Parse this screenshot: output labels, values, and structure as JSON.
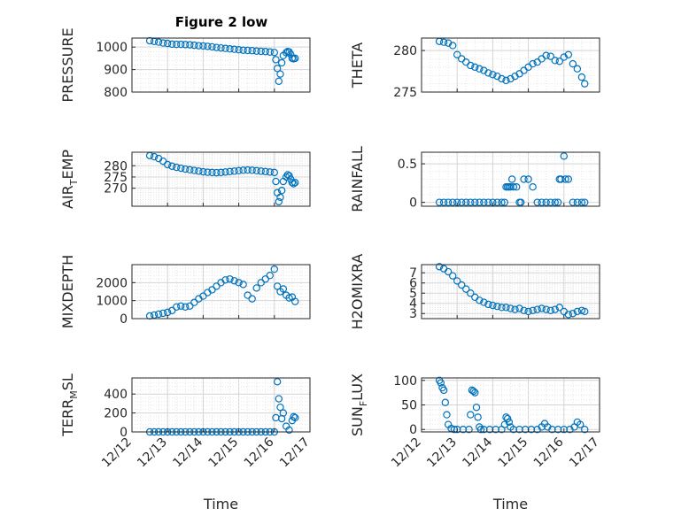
{
  "marker_color": "#0072BD",
  "chart_data": [
    {
      "type": "scatter",
      "title": "Figure 2 low",
      "ylabel": "PRESSURE",
      "xlabel": "",
      "xlim": [
        "12/12",
        "12/17"
      ],
      "ylim": [
        800,
        1040
      ],
      "yticks": [
        800,
        900,
        1000
      ],
      "ytick_labels": [
        "800",
        "900",
        "1000"
      ],
      "xtick_labels": [],
      "grid": true,
      "x": [
        "12/12 12:00",
        "12/12 15:00",
        "12/12 18:00",
        "12/12 21:00",
        "12/13 00:00",
        "12/13 03:00",
        "12/13 06:00",
        "12/13 09:00",
        "12/13 12:00",
        "12/13 15:00",
        "12/13 18:00",
        "12/13 21:00",
        "12/14 00:00",
        "12/14 03:00",
        "12/14 06:00",
        "12/14 09:00",
        "12/14 12:00",
        "12/14 15:00",
        "12/14 18:00",
        "12/14 21:00",
        "12/15 00:00",
        "12/15 03:00",
        "12/15 06:00",
        "12/15 09:00",
        "12/15 12:00",
        "12/15 15:00",
        "12/15 18:00",
        "12/15 21:00",
        "12/16 00:00",
        "12/16 01:00",
        "12/16 02:00",
        "12/16 03:00",
        "12/16 04:00",
        "12/16 05:00",
        "12/16 06:00",
        "12/16 08:00",
        "12/16 09:00",
        "12/16 10:00",
        "12/16 11:00",
        "12/16 12:00",
        "12/16 13:00",
        "12/16 14:00"
      ],
      "y": [
        1028,
        1025,
        1022,
        1018,
        1016,
        1013,
        1012,
        1012,
        1011,
        1010,
        1008,
        1006,
        1005,
        1003,
        1001,
        998,
        996,
        994,
        992,
        990,
        988,
        986,
        985,
        984,
        982,
        981,
        980,
        978,
        976,
        944,
        905,
        848,
        880,
        930,
        962,
        975,
        980,
        978,
        968,
        950,
        948,
        950
      ]
    },
    {
      "type": "scatter",
      "title": "",
      "ylabel": "THETA",
      "xlabel": "",
      "xlim": [
        "12/12",
        "12/17"
      ],
      "ylim": [
        275,
        281.5
      ],
      "yticks": [
        275,
        280
      ],
      "ytick_labels": [
        "275",
        "280"
      ],
      "xtick_labels": [],
      "grid": true,
      "x": [
        "12/12 12:00",
        "12/12 15:00",
        "12/12 18:00",
        "12/12 21:00",
        "12/13 00:00",
        "12/13 03:00",
        "12/13 06:00",
        "12/13 09:00",
        "12/13 12:00",
        "12/13 15:00",
        "12/13 18:00",
        "12/13 21:00",
        "12/14 00:00",
        "12/14 03:00",
        "12/14 06:00",
        "12/14 09:00",
        "12/14 12:00",
        "12/14 15:00",
        "12/14 18:00",
        "12/14 21:00",
        "12/15 00:00",
        "12/15 03:00",
        "12/15 06:00",
        "12/15 09:00",
        "12/15 12:00",
        "12/15 15:00",
        "12/15 18:00",
        "12/15 21:00",
        "12/16 00:00",
        "12/16 03:00",
        "12/16 06:00",
        "12/16 09:00",
        "12/16 12:00",
        "12/16 14:00"
      ],
      "y": [
        281.1,
        281.0,
        280.9,
        280.6,
        279.5,
        279.0,
        278.6,
        278.2,
        278.0,
        277.8,
        277.6,
        277.3,
        277.1,
        276.9,
        276.6,
        276.4,
        276.6,
        276.9,
        277.2,
        277.6,
        278.0,
        278.4,
        278.6,
        279.0,
        279.4,
        279.3,
        278.8,
        278.7,
        279.2,
        279.5,
        278.4,
        277.8,
        276.8,
        276.0
      ]
    },
    {
      "type": "scatter",
      "title": "",
      "ylabel": "AIR_TEMP",
      "xlabel": "",
      "xlim": [
        "12/12",
        "12/17"
      ],
      "ylim": [
        262,
        286
      ],
      "yticks": [
        270,
        275,
        280
      ],
      "ytick_labels": [
        "270",
        "275",
        "280"
      ],
      "xtick_labels": [],
      "grid": true,
      "x": [
        "12/12 12:00",
        "12/12 15:00",
        "12/12 18:00",
        "12/12 21:00",
        "12/13 00:00",
        "12/13 03:00",
        "12/13 06:00",
        "12/13 09:00",
        "12/13 12:00",
        "12/13 15:00",
        "12/13 18:00",
        "12/13 21:00",
        "12/14 00:00",
        "12/14 03:00",
        "12/14 06:00",
        "12/14 09:00",
        "12/14 12:00",
        "12/14 15:00",
        "12/14 18:00",
        "12/14 21:00",
        "12/15 00:00",
        "12/15 03:00",
        "12/15 06:00",
        "12/15 09:00",
        "12/15 12:00",
        "12/15 15:00",
        "12/15 18:00",
        "12/15 21:00",
        "12/16 00:00",
        "12/16 01:00",
        "12/16 02:00",
        "12/16 03:00",
        "12/16 04:00",
        "12/16 05:00",
        "12/16 06:00",
        "12/16 08:00",
        "12/16 09:00",
        "12/16 10:00",
        "12/16 11:00",
        "12/16 12:00",
        "12/16 13:00",
        "12/16 14:00"
      ],
      "y": [
        284.5,
        284.0,
        283.2,
        282.0,
        280.5,
        279.8,
        279.3,
        278.9,
        278.5,
        278.2,
        277.9,
        277.6,
        277.3,
        277.1,
        277.0,
        276.9,
        277.0,
        277.2,
        277.4,
        277.6,
        277.8,
        278.0,
        278.1,
        278.0,
        277.8,
        277.6,
        277.4,
        277.2,
        277.0,
        273.0,
        268.0,
        264.0,
        266.0,
        269.0,
        273.0,
        275.0,
        276.0,
        275.5,
        274.0,
        272.5,
        272.0,
        272.5
      ]
    },
    {
      "type": "scatter",
      "title": "",
      "ylabel": "RAINFALL",
      "xlabel": "",
      "xlim": [
        "12/12",
        "12/17"
      ],
      "ylim": [
        -0.05,
        0.65
      ],
      "yticks": [
        0,
        0.5
      ],
      "ytick_labels": [
        "0",
        "0.5"
      ],
      "xtick_labels": [],
      "grid": true,
      "x": [
        "12/12 12:00",
        "12/12 15:00",
        "12/12 18:00",
        "12/12 21:00",
        "12/13 00:00",
        "12/13 03:00",
        "12/13 06:00",
        "12/13 09:00",
        "12/13 12:00",
        "12/13 15:00",
        "12/13 18:00",
        "12/13 21:00",
        "12/14 00:00",
        "12/14 03:00",
        "12/14 06:00",
        "12/14 08:00",
        "12/14 09:00",
        "12/14 10:00",
        "12/14 11:00",
        "12/14 12:00",
        "12/14 13:00",
        "12/14 14:00",
        "12/14 16:00",
        "12/14 18:00",
        "12/14 19:00",
        "12/14 21:00",
        "12/15 00:00",
        "12/15 03:00",
        "12/15 06:00",
        "12/15 09:00",
        "12/15 12:00",
        "12/15 15:00",
        "12/15 18:00",
        "12/15 20:00",
        "12/15 21:00",
        "12/15 22:00",
        "12/16 00:00",
        "12/16 01:00",
        "12/16 03:00",
        "12/16 06:00",
        "12/16 09:00",
        "12/16 12:00",
        "12/16 14:00"
      ],
      "y": [
        0,
        0,
        0,
        0,
        0,
        0,
        0,
        0,
        0,
        0,
        0,
        0,
        0,
        0,
        0,
        0,
        0.2,
        0.2,
        0.2,
        0.2,
        0.3,
        0.2,
        0.2,
        0,
        0,
        0.3,
        0.3,
        0.2,
        0,
        0,
        0,
        0,
        0,
        0,
        0.3,
        0.3,
        0.6,
        0.3,
        0.3,
        0,
        0,
        0,
        0
      ]
    },
    {
      "type": "scatter",
      "title": "",
      "ylabel": "MIXDEPTH",
      "xlabel": "",
      "xlim": [
        "12/12",
        "12/17"
      ],
      "ylim": [
        0,
        3000
      ],
      "yticks": [
        0,
        1000,
        2000
      ],
      "ytick_labels": [
        "0",
        "1000",
        "2000"
      ],
      "xtick_labels": [],
      "grid": true,
      "x": [
        "12/12 12:00",
        "12/12 15:00",
        "12/12 18:00",
        "12/12 21:00",
        "12/13 00:00",
        "12/13 03:00",
        "12/13 06:00",
        "12/13 09:00",
        "12/13 12:00",
        "12/13 15:00",
        "12/13 18:00",
        "12/13 21:00",
        "12/14 00:00",
        "12/14 03:00",
        "12/14 06:00",
        "12/14 09:00",
        "12/14 12:00",
        "12/14 15:00",
        "12/14 18:00",
        "12/14 21:00",
        "12/15 00:00",
        "12/15 03:00",
        "12/15 06:00",
        "12/15 09:00",
        "12/15 12:00",
        "12/15 15:00",
        "12/15 18:00",
        "12/15 21:00",
        "12/16 00:00",
        "12/16 02:00",
        "12/16 04:00",
        "12/16 06:00",
        "12/16 08:00",
        "12/16 10:00",
        "12/16 12:00",
        "12/16 14:00"
      ],
      "y": [
        150,
        200,
        250,
        300,
        350,
        450,
        650,
        700,
        650,
        700,
        900,
        1100,
        1250,
        1450,
        1600,
        1800,
        2000,
        2150,
        2200,
        2100,
        2000,
        1900,
        1300,
        1100,
        1700,
        2000,
        2200,
        2400,
        2750,
        1800,
        1500,
        1650,
        1300,
        1150,
        1200,
        950
      ]
    },
    {
      "type": "scatter",
      "title": "",
      "ylabel": "H2OMIXRA",
      "xlabel": "",
      "xlim": [
        "12/12",
        "12/17"
      ],
      "ylim": [
        2.5,
        7.8
      ],
      "yticks": [
        3,
        4,
        5,
        6,
        7
      ],
      "ytick_labels": [
        "3",
        "4",
        "5",
        "6",
        "7"
      ],
      "xtick_labels": [],
      "grid": true,
      "x": [
        "12/12 12:00",
        "12/12 15:00",
        "12/12 18:00",
        "12/12 21:00",
        "12/13 00:00",
        "12/13 03:00",
        "12/13 06:00",
        "12/13 09:00",
        "12/13 12:00",
        "12/13 15:00",
        "12/13 18:00",
        "12/13 21:00",
        "12/14 00:00",
        "12/14 03:00",
        "12/14 06:00",
        "12/14 09:00",
        "12/14 12:00",
        "12/14 15:00",
        "12/14 18:00",
        "12/14 21:00",
        "12/15 00:00",
        "12/15 03:00",
        "12/15 06:00",
        "12/15 09:00",
        "12/15 12:00",
        "12/15 15:00",
        "12/15 18:00",
        "12/15 21:00",
        "12/16 00:00",
        "12/16 03:00",
        "12/16 06:00",
        "12/16 09:00",
        "12/16 12:00",
        "12/16 14:00"
      ],
      "y": [
        7.6,
        7.4,
        7.1,
        6.7,
        6.2,
        5.8,
        5.4,
        5.0,
        4.6,
        4.3,
        4.1,
        3.9,
        3.8,
        3.7,
        3.6,
        3.6,
        3.5,
        3.4,
        3.5,
        3.3,
        3.2,
        3.3,
        3.4,
        3.5,
        3.4,
        3.3,
        3.4,
        3.6,
        3.2,
        2.9,
        3.0,
        3.2,
        3.3,
        3.2
      ]
    },
    {
      "type": "scatter",
      "title": "",
      "ylabel": "TERR_MSL",
      "xlabel": "Time",
      "xlim": [
        "12/12",
        "12/17"
      ],
      "ylim": [
        0,
        570
      ],
      "yticks": [
        0,
        200,
        400
      ],
      "ytick_labels": [
        "0",
        "200",
        "400"
      ],
      "xtick_labels": [
        "12/12",
        "12/13",
        "12/14",
        "12/15",
        "12/16",
        "12/17"
      ],
      "grid": true,
      "x": [
        "12/12 12:00",
        "12/12 15:00",
        "12/12 18:00",
        "12/12 21:00",
        "12/13 00:00",
        "12/13 03:00",
        "12/13 06:00",
        "12/13 09:00",
        "12/13 12:00",
        "12/13 15:00",
        "12/13 18:00",
        "12/13 21:00",
        "12/14 00:00",
        "12/14 03:00",
        "12/14 06:00",
        "12/14 09:00",
        "12/14 12:00",
        "12/14 15:00",
        "12/14 18:00",
        "12/14 21:00",
        "12/15 00:00",
        "12/15 03:00",
        "12/15 06:00",
        "12/15 09:00",
        "12/15 12:00",
        "12/15 15:00",
        "12/15 18:00",
        "12/15 21:00",
        "12/16 00:00",
        "12/16 01:00",
        "12/16 02:00",
        "12/16 03:00",
        "12/16 04:00",
        "12/16 05:00",
        "12/16 06:00",
        "12/16 08:00",
        "12/16 10:00",
        "12/16 12:00",
        "12/16 13:00",
        "12/16 14:00"
      ],
      "y": [
        0,
        0,
        0,
        0,
        0,
        0,
        0,
        0,
        0,
        0,
        0,
        0,
        0,
        0,
        0,
        0,
        0,
        0,
        0,
        0,
        0,
        0,
        0,
        0,
        0,
        0,
        0,
        0,
        0,
        150,
        530,
        350,
        260,
        140,
        200,
        60,
        20,
        120,
        160,
        150
      ]
    },
    {
      "type": "scatter",
      "title": "",
      "ylabel": "SUN_FLUX",
      "xlabel": "Time",
      "xlim": [
        "12/12",
        "12/17"
      ],
      "ylim": [
        -5,
        105
      ],
      "yticks": [
        0,
        50,
        100
      ],
      "ytick_labels": [
        "0",
        "50",
        "100"
      ],
      "xtick_labels": [
        "12/12",
        "12/13",
        "12/14",
        "12/15",
        "12/16",
        "12/17"
      ],
      "grid": true,
      "x": [
        "12/12 12:00",
        "12/12 13:00",
        "12/12 14:00",
        "12/12 15:00",
        "12/12 16:00",
        "12/12 17:00",
        "12/12 18:00",
        "12/12 20:00",
        "12/12 22:00",
        "12/13 00:00",
        "12/13 04:00",
        "12/13 08:00",
        "12/13 09:00",
        "12/13 10:00",
        "12/13 11:00",
        "12/13 12:00",
        "12/13 13:00",
        "12/13 14:00",
        "12/13 15:00",
        "12/13 16:00",
        "12/13 18:00",
        "12/13 22:00",
        "12/14 02:00",
        "12/14 06:00",
        "12/14 08:00",
        "12/14 09:00",
        "12/14 10:00",
        "12/14 11:00",
        "12/14 12:00",
        "12/14 14:00",
        "12/14 18:00",
        "12/14 22:00",
        "12/15 02:00",
        "12/15 06:00",
        "12/15 09:00",
        "12/15 11:00",
        "12/15 13:00",
        "12/15 16:00",
        "12/15 20:00",
        "12/16 00:00",
        "12/16 04:00",
        "12/16 07:00",
        "12/16 09:00",
        "12/16 11:00",
        "12/16 14:00"
      ],
      "y": [
        100,
        95,
        85,
        80,
        55,
        30,
        10,
        2,
        0,
        0,
        0,
        0,
        30,
        80,
        78,
        75,
        45,
        25,
        5,
        0,
        0,
        0,
        0,
        0,
        10,
        25,
        22,
        15,
        5,
        0,
        0,
        0,
        0,
        0,
        5,
        12,
        5,
        0,
        0,
        0,
        0,
        5,
        15,
        10,
        0
      ]
    }
  ]
}
